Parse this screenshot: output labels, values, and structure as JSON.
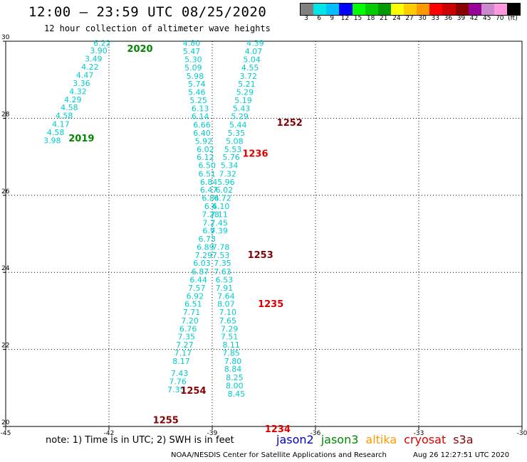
{
  "header": {
    "title": "12:00 — 23:59 UTC 08/25/2020",
    "subtitle": "12 hour collection of altimeter wave heights"
  },
  "colorbar": {
    "colors": [
      "#808080",
      "#00e5e5",
      "#00bfff",
      "#0000ff",
      "#00ff00",
      "#00cc00",
      "#009900",
      "#ffff00",
      "#ffcc00",
      "#ff9900",
      "#ff0000",
      "#cc0000",
      "#880000",
      "#990099",
      "#cc88cc",
      "#ff99dd",
      "#000000"
    ],
    "labels": [
      "3",
      "6",
      "9",
      "12",
      "15",
      "18",
      "21",
      "24",
      "27",
      "30",
      "33",
      "36",
      "39",
      "42",
      "45",
      "70",
      "(ft)"
    ]
  },
  "chart_data": {
    "type": "scatter",
    "xlabel": "",
    "ylabel": "",
    "xlim": [
      -45,
      -30
    ],
    "ylim": [
      20,
      30
    ],
    "x_ticks": [
      "-45",
      "-42",
      "-39",
      "-36",
      "-33",
      "-30"
    ],
    "y_ticks": [
      "20",
      "22",
      "24",
      "26",
      "28",
      "30"
    ],
    "grid": true,
    "point_color": "#00cccc",
    "tracks": [
      {
        "points": [
          {
            "lon": -42.2,
            "lat": 29.95,
            "v": "6.22"
          },
          {
            "lon": -42.3,
            "lat": 29.76,
            "v": "3.90"
          },
          {
            "lon": -42.45,
            "lat": 29.55,
            "v": "3.49"
          },
          {
            "lon": -42.55,
            "lat": 29.34,
            "v": "4.22"
          },
          {
            "lon": -42.7,
            "lat": 29.12,
            "v": "4.47"
          },
          {
            "lon": -42.8,
            "lat": 28.91,
            "v": "3.36"
          },
          {
            "lon": -42.9,
            "lat": 28.7,
            "v": "4.32"
          },
          {
            "lon": -43.05,
            "lat": 28.49,
            "v": "4.29"
          },
          {
            "lon": -43.15,
            "lat": 28.28,
            "v": "4.58"
          },
          {
            "lon": -43.3,
            "lat": 28.07,
            "v": "4.58"
          },
          {
            "lon": -43.4,
            "lat": 27.85,
            "v": "4.17"
          },
          {
            "lon": -43.55,
            "lat": 27.64,
            "v": "4.58"
          },
          {
            "lon": -43.65,
            "lat": 27.43,
            "v": "3.98"
          }
        ]
      },
      {
        "points": [
          {
            "lon": -39.6,
            "lat": 29.95,
            "v": "4.80"
          },
          {
            "lon": -39.6,
            "lat": 29.74,
            "v": "5.47"
          },
          {
            "lon": -39.55,
            "lat": 29.53,
            "v": "5.30"
          },
          {
            "lon": -39.55,
            "lat": 29.32,
            "v": "5.09"
          },
          {
            "lon": -39.5,
            "lat": 29.1,
            "v": "5.98"
          },
          {
            "lon": -39.45,
            "lat": 28.89,
            "v": "5.74"
          },
          {
            "lon": -39.45,
            "lat": 28.68,
            "v": "5.46"
          },
          {
            "lon": -39.4,
            "lat": 28.47,
            "v": "5.25"
          },
          {
            "lon": -39.35,
            "lat": 28.26,
            "v": "6.13"
          },
          {
            "lon": -39.35,
            "lat": 28.05,
            "v": "6.14"
          },
          {
            "lon": -39.3,
            "lat": 27.83,
            "v": "6.66"
          },
          {
            "lon": -39.3,
            "lat": 27.62,
            "v": "6.40"
          },
          {
            "lon": -39.25,
            "lat": 27.41,
            "v": "5.92"
          },
          {
            "lon": -39.2,
            "lat": 27.2,
            "v": "6.02"
          },
          {
            "lon": -39.2,
            "lat": 26.99,
            "v": "6.12"
          },
          {
            "lon": -39.15,
            "lat": 26.78,
            "v": "6.50"
          },
          {
            "lon": -39.15,
            "lat": 26.56,
            "v": "6.51"
          },
          {
            "lon": -39.1,
            "lat": 26.35,
            "v": "6.84"
          },
          {
            "lon": -39.1,
            "lat": 26.14,
            "v": "6.47"
          },
          {
            "lon": -39.05,
            "lat": 25.93,
            "v": "6.84"
          },
          {
            "lon": -39.05,
            "lat": 25.72,
            "v": "6.4"
          },
          {
            "lon": -39.05,
            "lat": 25.51,
            "v": "7.28"
          },
          {
            "lon": -39.1,
            "lat": 25.29,
            "v": "7.2"
          },
          {
            "lon": -39.1,
            "lat": 25.08,
            "v": "6.9"
          },
          {
            "lon": -39.15,
            "lat": 24.87,
            "v": "6.73"
          },
          {
            "lon": -39.2,
            "lat": 24.66,
            "v": "6.89"
          },
          {
            "lon": -39.25,
            "lat": 24.45,
            "v": "7.29"
          },
          {
            "lon": -39.3,
            "lat": 24.24,
            "v": "6.03"
          },
          {
            "lon": -39.35,
            "lat": 24.02,
            "v": "6.87"
          },
          {
            "lon": -39.4,
            "lat": 23.81,
            "v": "6.44"
          },
          {
            "lon": -39.45,
            "lat": 23.6,
            "v": "7.57"
          },
          {
            "lon": -39.5,
            "lat": 23.39,
            "v": "6.92"
          },
          {
            "lon": -39.55,
            "lat": 23.18,
            "v": "6.51"
          },
          {
            "lon": -39.6,
            "lat": 22.97,
            "v": "7.71"
          },
          {
            "lon": -39.65,
            "lat": 22.75,
            "v": "7.20"
          },
          {
            "lon": -39.7,
            "lat": 22.54,
            "v": "6.76"
          },
          {
            "lon": -39.75,
            "lat": 22.33,
            "v": "7.35"
          },
          {
            "lon": -39.8,
            "lat": 22.12,
            "v": "7.27"
          },
          {
            "lon": -39.85,
            "lat": 21.91,
            "v": "7.17"
          },
          {
            "lon": -39.9,
            "lat": 21.7,
            "v": "8.17"
          },
          {
            "lon": -39.95,
            "lat": 21.38,
            "v": "7.43"
          },
          {
            "lon": -40.0,
            "lat": 21.17,
            "v": "7.76"
          },
          {
            "lon": -40.05,
            "lat": 20.96,
            "v": "7.35"
          }
        ]
      },
      {
        "points": [
          {
            "lon": -37.75,
            "lat": 29.95,
            "v": "4.39"
          },
          {
            "lon": -37.8,
            "lat": 29.74,
            "v": "4.07"
          },
          {
            "lon": -37.85,
            "lat": 29.53,
            "v": "5.04"
          },
          {
            "lon": -37.9,
            "lat": 29.32,
            "v": "4.55"
          },
          {
            "lon": -37.95,
            "lat": 29.1,
            "v": "3.72"
          },
          {
            "lon": -38.0,
            "lat": 28.89,
            "v": "5.21"
          },
          {
            "lon": -38.05,
            "lat": 28.68,
            "v": "5.29"
          },
          {
            "lon": -38.1,
            "lat": 28.47,
            "v": "5.19"
          },
          {
            "lon": -38.15,
            "lat": 28.26,
            "v": "5.43"
          },
          {
            "lon": -38.2,
            "lat": 28.05,
            "v": "5.29"
          },
          {
            "lon": -38.25,
            "lat": 27.83,
            "v": "5.44"
          },
          {
            "lon": -38.3,
            "lat": 27.62,
            "v": "5.35"
          },
          {
            "lon": -38.35,
            "lat": 27.41,
            "v": "5.08"
          },
          {
            "lon": -38.4,
            "lat": 27.2,
            "v": "5.53"
          },
          {
            "lon": -38.45,
            "lat": 26.99,
            "v": "5.76"
          },
          {
            "lon": -38.5,
            "lat": 26.78,
            "v": "5.34"
          },
          {
            "lon": -38.55,
            "lat": 26.56,
            "v": "7.32"
          },
          {
            "lon": -38.6,
            "lat": 26.35,
            "v": "5.96"
          },
          {
            "lon": -38.65,
            "lat": 26.14,
            "v": "6.02"
          },
          {
            "lon": -38.7,
            "lat": 25.93,
            "v": "6.72"
          },
          {
            "lon": -38.75,
            "lat": 25.72,
            "v": "6.10"
          },
          {
            "lon": -38.8,
            "lat": 25.51,
            "v": "7.11"
          },
          {
            "lon": -38.8,
            "lat": 25.29,
            "v": "7.45"
          },
          {
            "lon": -38.8,
            "lat": 25.08,
            "v": "7.39"
          },
          {
            "lon": -38.75,
            "lat": 24.66,
            "v": "7.78"
          },
          {
            "lon": -38.75,
            "lat": 24.45,
            "v": "7.53"
          },
          {
            "lon": -38.7,
            "lat": 24.24,
            "v": "7.35"
          },
          {
            "lon": -38.7,
            "lat": 24.02,
            "v": "7.63"
          },
          {
            "lon": -38.65,
            "lat": 23.81,
            "v": "6.53"
          },
          {
            "lon": -38.65,
            "lat": 23.6,
            "v": "7.91"
          },
          {
            "lon": -38.6,
            "lat": 23.39,
            "v": "7.64"
          },
          {
            "lon": -38.6,
            "lat": 23.18,
            "v": "8.07"
          },
          {
            "lon": -38.55,
            "lat": 22.97,
            "v": "7.10"
          },
          {
            "lon": -38.55,
            "lat": 22.75,
            "v": "7.65"
          },
          {
            "lon": -38.5,
            "lat": 22.54,
            "v": "7.29"
          },
          {
            "lon": -38.5,
            "lat": 22.33,
            "v": "7.51"
          },
          {
            "lon": -38.45,
            "lat": 22.12,
            "v": "8.11"
          },
          {
            "lon": -38.45,
            "lat": 21.91,
            "v": "7.85"
          },
          {
            "lon": -38.4,
            "lat": 21.7,
            "v": "7.80"
          },
          {
            "lon": -38.4,
            "lat": 21.49,
            "v": "8.84"
          },
          {
            "lon": -38.35,
            "lat": 21.27,
            "v": "8.25"
          },
          {
            "lon": -38.35,
            "lat": 21.06,
            "v": "8.00"
          },
          {
            "lon": -38.3,
            "lat": 20.85,
            "v": "8.45"
          }
        ]
      }
    ],
    "annotations": [
      {
        "text": "2020",
        "lon": -41.1,
        "lat": 29.8,
        "color": "#008800"
      },
      {
        "text": "2019",
        "lon": -42.8,
        "lat": 27.47,
        "color": "#008800"
      },
      {
        "text": "1252",
        "lon": -36.75,
        "lat": 27.88,
        "color": "#880000"
      },
      {
        "text": "1236",
        "lon": -37.75,
        "lat": 27.08,
        "color": "#dd0000"
      },
      {
        "text": "1253",
        "lon": -37.6,
        "lat": 24.45,
        "color": "#880000"
      },
      {
        "text": "1235",
        "lon": -37.3,
        "lat": 23.17,
        "color": "#dd0000"
      },
      {
        "text": "1254",
        "lon": -39.55,
        "lat": 20.92,
        "color": "#880000"
      },
      {
        "text": "1255",
        "lon": -40.35,
        "lat": 20.16,
        "color": "#880000"
      },
      {
        "text": "1234",
        "lon": -37.1,
        "lat": 19.93,
        "color": "#dd0000"
      }
    ]
  },
  "footer": {
    "note": "note: 1) Time is in UTC; 2) SWH is in feet",
    "legend": [
      {
        "name": "jason2",
        "color": "#0000cc"
      },
      {
        "name": "jason3",
        "color": "#008800"
      },
      {
        "name": "altika",
        "color": "#ff9900"
      },
      {
        "name": "cryosat",
        "color": "#dd0000"
      },
      {
        "name": "s3a",
        "color": "#880000"
      }
    ],
    "credit": "NOAA/NESDIS Center for Satellite Applications and Research",
    "timestamp": "Aug 26 12:27:51 UTC 2020"
  }
}
